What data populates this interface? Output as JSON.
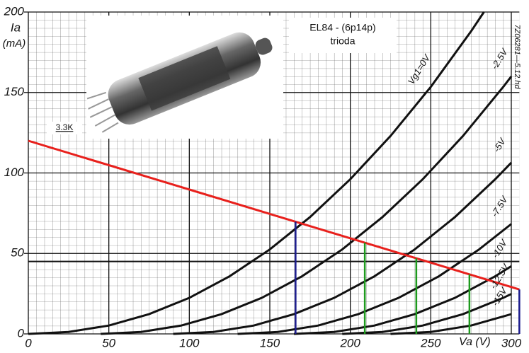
{
  "chart_data": {
    "type": "line",
    "title": "EL84 - (6p14p)",
    "subtitle": "trioda",
    "y_label": "Ia",
    "y_unit": "(mA)",
    "x_label": "Va (V)",
    "code": "7Z06281—5.12.hd",
    "xlim": [
      0,
      305
    ],
    "ylim": [
      0,
      200
    ],
    "xticks": [
      0,
      50,
      100,
      150,
      200,
      250,
      300
    ],
    "yticks": [
      0,
      50,
      100,
      150,
      200
    ],
    "grid": true,
    "series": [
      {
        "name": "Vg1=0V",
        "color": "#111111",
        "x": [
          0,
          25,
          50,
          75,
          100,
          125,
          150,
          175,
          200,
          225,
          250,
          275,
          283
        ],
        "values": [
          0,
          1.2,
          5.2,
          12.3,
          22.4,
          35.8,
          52.5,
          72.6,
          96.1,
          123,
          153.5,
          188,
          200
        ]
      },
      {
        "name": "-2.5V",
        "color": "#111111",
        "x": [
          45,
          70,
          95,
          120,
          145,
          170,
          195,
          220,
          245,
          270,
          295,
          300
        ],
        "values": [
          0,
          1.2,
          5.2,
          12.3,
          22.4,
          35.8,
          52.5,
          72.6,
          96.1,
          123,
          153.5,
          160
        ]
      },
      {
        "name": "-5V",
        "color": "#111111",
        "x": [
          90,
          115,
          140,
          165,
          190,
          215,
          240,
          265,
          290,
          300
        ],
        "values": [
          0,
          1.2,
          5.2,
          12.3,
          22.4,
          35.8,
          52.5,
          72.6,
          96.1,
          106.4
        ]
      },
      {
        "name": "-7.5V",
        "color": "#111111",
        "x": [
          130,
          155,
          180,
          205,
          230,
          255,
          280,
          300
        ],
        "values": [
          0,
          1.2,
          5.2,
          12.3,
          22.4,
          35.8,
          52.5,
          68.3
        ]
      },
      {
        "name": "-10V",
        "color": "#111111",
        "x": [
          165,
          190,
          215,
          240,
          265,
          290,
          300
        ],
        "values": [
          0,
          1.2,
          5.2,
          12.3,
          22.4,
          35.8,
          42.1
        ]
      },
      {
        "name": "-12.5V",
        "color": "#111111",
        "x": [
          195,
          220,
          245,
          270,
          295,
          300
        ],
        "values": [
          0,
          1.2,
          5.2,
          12.3,
          22.4,
          24.8
        ]
      },
      {
        "name": "-15V",
        "color": "#111111",
        "x": [
          225,
          250,
          275,
          300
        ],
        "values": [
          0,
          1.2,
          5.2,
          12.3
        ]
      }
    ],
    "load_line": {
      "name": "3.3K",
      "color": "#e8201c",
      "x": [
        0,
        305
      ],
      "values": [
        120,
        27.6
      ]
    },
    "reference_line": 45,
    "markers": {
      "x": [
        166,
        209,
        241,
        274,
        305
      ],
      "values": [
        69.7,
        56.7,
        47,
        37,
        27.6
      ],
      "colors": [
        "#1a1a8c",
        "#1e9a1e",
        "#1e9a1e",
        "#1e9a1e",
        "#1a1a8c"
      ]
    }
  }
}
